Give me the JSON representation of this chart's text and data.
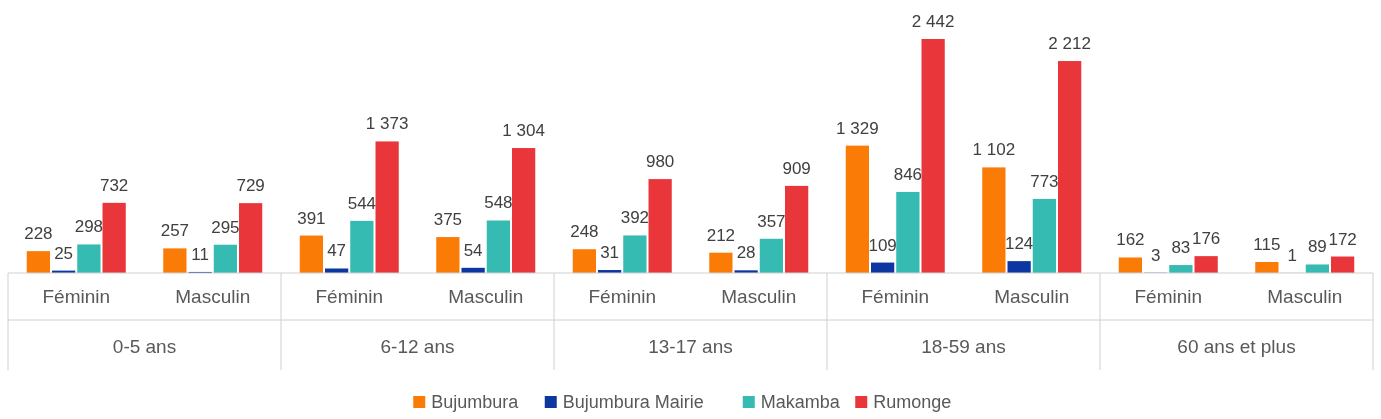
{
  "chart_data": {
    "type": "bar",
    "categories": [
      "Féminin",
      "Masculin",
      "Féminin",
      "Masculin",
      "Féminin",
      "Masculin",
      "Féminin",
      "Masculin",
      "Féminin",
      "Masculin"
    ],
    "annotations": [
      "0-5 ans",
      "6-12 ans",
      "13-17 ans",
      "18-59 ans",
      "60 ans et plus"
    ],
    "series": [
      {
        "name": "Bujumbura",
        "color": "#fb7b07",
        "values": [
          228,
          257,
          391,
          375,
          248,
          212,
          1329,
          1102,
          162,
          115
        ],
        "value_labels": [
          "228",
          "257",
          "391",
          "375",
          "248",
          "212",
          "1 329",
          "1 102",
          "162",
          "115"
        ]
      },
      {
        "name": "Bujumbura Mairie",
        "color": "#0c36a0",
        "values": [
          25,
          11,
          47,
          54,
          31,
          28,
          109,
          124,
          3,
          1
        ],
        "value_labels": [
          "25",
          "11",
          "47",
          "54",
          "31",
          "28",
          "109",
          "124",
          "3",
          "1"
        ]
      },
      {
        "name": "Makamba",
        "color": "#35bbb2",
        "values": [
          298,
          295,
          544,
          548,
          392,
          357,
          846,
          773,
          83,
          89
        ],
        "value_labels": [
          "298",
          "295",
          "544",
          "548",
          "392",
          "357",
          "846",
          "773",
          "83",
          "89"
        ]
      },
      {
        "name": "Rumonge",
        "color": "#e8363a",
        "values": [
          732,
          729,
          1373,
          1304,
          980,
          909,
          2442,
          2212,
          176,
          172
        ],
        "value_labels": [
          "732",
          "729",
          "1 373",
          "1 304",
          "980",
          "909",
          "2 442",
          "2 212",
          "176",
          "172"
        ]
      }
    ],
    "legend": "bottom"
  }
}
